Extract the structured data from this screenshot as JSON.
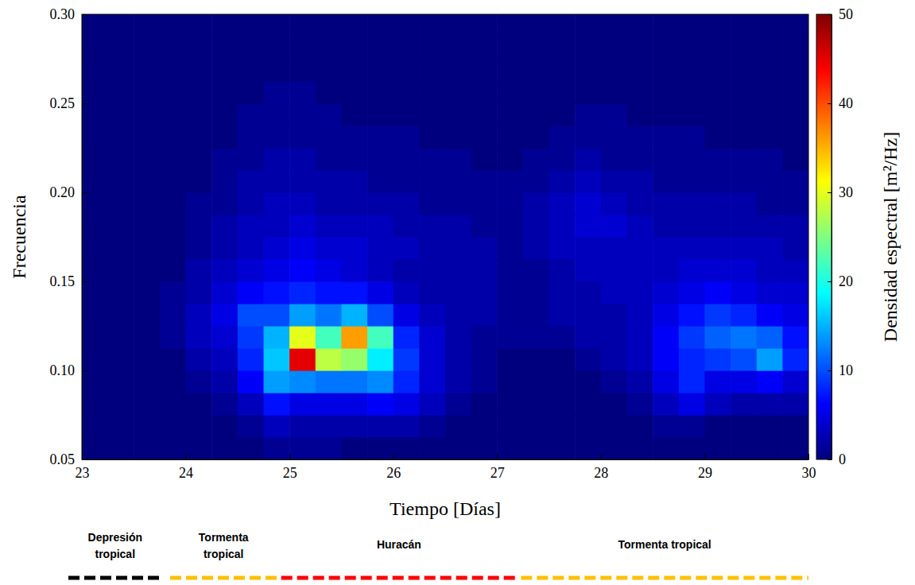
{
  "chart_data": {
    "type": "heatmap",
    "x_label": "Tiempo [Días]",
    "y_label": "Frecuencia",
    "xlim": [
      23,
      30
    ],
    "xticks": [
      23,
      24,
      25,
      26,
      27,
      28,
      29,
      30
    ],
    "ylim": [
      0.05,
      0.3
    ],
    "yticks": [
      0.05,
      {
        "value": 0.1,
        "label": "0.10"
      },
      0.15,
      {
        "value": 0.2,
        "label": "0.20"
      },
      0.25,
      {
        "value": 0.3,
        "label": "0.30"
      }
    ],
    "x_bins": [
      23,
      23.25,
      23.5,
      23.75,
      24,
      24.25,
      24.5,
      24.75,
      25,
      25.25,
      25.5,
      25.75,
      26,
      26.25,
      26.5,
      26.75,
      27,
      27.25,
      27.5,
      27.75,
      28,
      28.25,
      28.5,
      28.75,
      29,
      29.25,
      29.5,
      29.75,
      30
    ],
    "y_bins": [
      0.05,
      0.0625,
      0.075,
      0.0875,
      0.1,
      0.1125,
      0.125,
      0.1375,
      0.15,
      0.1625,
      0.175,
      0.1875,
      0.2,
      0.2125,
      0.225,
      0.2375,
      0.25,
      0.2625,
      0.275,
      0.2875,
      0.3
    ],
    "values": [
      [
        0,
        0,
        0,
        0,
        0,
        0,
        0,
        1,
        1,
        1,
        0,
        0,
        0,
        0,
        0,
        0,
        0,
        0,
        0,
        0,
        0,
        0,
        0,
        0,
        0,
        0,
        0,
        0
      ],
      [
        0,
        0,
        0,
        0,
        0,
        0,
        1,
        3,
        2,
        2,
        2,
        2,
        2,
        1,
        0,
        0,
        0,
        0,
        0,
        0,
        0,
        0,
        1,
        1,
        0,
        0,
        0,
        0
      ],
      [
        0,
        0,
        0,
        0,
        0,
        1,
        3,
        7,
        5,
        5,
        5,
        6,
        5,
        3,
        1,
        0,
        0,
        0,
        0,
        0,
        0,
        1,
        3,
        5,
        3,
        2,
        2,
        2
      ],
      [
        0,
        0,
        0,
        0,
        1,
        2,
        6,
        14,
        13,
        12,
        12,
        13,
        8,
        4,
        2,
        1,
        0,
        0,
        0,
        0,
        1,
        2,
        5,
        8,
        5,
        5,
        6,
        4
      ],
      [
        0,
        0,
        0,
        0,
        2,
        3,
        8,
        16,
        45,
        28,
        26,
        18,
        9,
        4,
        2,
        1,
        0,
        0,
        0,
        1,
        2,
        3,
        6,
        8,
        9,
        10,
        14,
        8
      ],
      [
        0,
        0,
        0,
        1,
        3,
        4,
        9,
        15,
        30,
        22,
        36,
        22,
        8,
        4,
        2,
        1,
        1,
        1,
        1,
        2,
        2,
        3,
        6,
        9,
        11,
        12,
        11,
        7
      ],
      [
        0,
        0,
        0,
        1,
        3,
        5,
        10,
        10,
        14,
        12,
        15,
        10,
        5,
        3,
        2,
        2,
        1,
        1,
        2,
        2,
        2,
        3,
        5,
        7,
        9,
        8,
        6,
        5
      ],
      [
        0,
        0,
        0,
        1,
        2,
        4,
        6,
        7,
        8,
        7,
        7,
        5,
        3,
        2,
        2,
        2,
        1,
        1,
        2,
        2,
        3,
        3,
        4,
        5,
        6,
        5,
        4,
        4
      ],
      [
        0,
        0,
        0,
        0,
        2,
        3,
        4,
        5,
        6,
        5,
        4,
        3,
        2,
        2,
        2,
        2,
        1,
        1,
        2,
        3,
        3,
        3,
        3,
        4,
        4,
        4,
        3,
        3
      ],
      [
        0,
        0,
        0,
        0,
        1,
        2,
        3,
        4,
        5,
        4,
        4,
        3,
        3,
        2,
        2,
        2,
        1,
        2,
        3,
        3,
        3,
        3,
        3,
        3,
        3,
        3,
        3,
        2
      ],
      [
        0,
        0,
        0,
        0,
        1,
        2,
        3,
        3,
        4,
        3,
        3,
        3,
        2,
        2,
        2,
        1,
        1,
        2,
        3,
        4,
        4,
        3,
        2,
        2,
        2,
        2,
        2,
        2
      ],
      [
        0,
        0,
        0,
        0,
        1,
        1,
        2,
        3,
        3,
        2,
        2,
        2,
        2,
        1,
        1,
        1,
        1,
        2,
        3,
        4,
        3,
        2,
        2,
        2,
        2,
        2,
        1,
        1
      ],
      [
        0,
        0,
        0,
        0,
        0,
        1,
        2,
        2,
        2,
        2,
        2,
        1,
        1,
        1,
        1,
        1,
        1,
        1,
        2,
        3,
        2,
        2,
        1,
        1,
        1,
        1,
        1,
        1
      ],
      [
        0,
        0,
        0,
        0,
        0,
        1,
        1,
        2,
        2,
        1,
        1,
        1,
        1,
        1,
        1,
        0,
        0,
        1,
        1,
        2,
        1,
        1,
        1,
        1,
        1,
        1,
        1,
        0
      ],
      [
        0,
        0,
        0,
        0,
        0,
        0,
        1,
        1,
        1,
        1,
        1,
        1,
        1,
        0,
        0,
        0,
        0,
        0,
        1,
        1,
        1,
        1,
        1,
        1,
        0,
        0,
        0,
        0
      ],
      [
        0,
        0,
        0,
        0,
        0,
        0,
        1,
        1,
        1,
        1,
        0,
        0,
        0,
        0,
        0,
        0,
        0,
        0,
        0,
        1,
        1,
        0,
        0,
        0,
        0,
        0,
        0,
        0
      ],
      [
        0,
        0,
        0,
        0,
        0,
        0,
        0,
        1,
        1,
        0,
        0,
        0,
        0,
        0,
        0,
        0,
        0,
        0,
        0,
        0,
        0,
        0,
        0,
        0,
        0,
        0,
        0,
        0
      ],
      [
        0,
        0,
        0,
        0,
        0,
        0,
        0,
        0,
        0,
        0,
        0,
        0,
        0,
        0,
        0,
        0,
        0,
        0,
        0,
        0,
        0,
        0,
        0,
        0,
        0,
        0,
        0,
        0
      ],
      [
        0,
        0,
        0,
        0,
        0,
        0,
        0,
        0,
        0,
        0,
        0,
        0,
        0,
        0,
        0,
        0,
        0,
        0,
        0,
        0,
        0,
        0,
        0,
        0,
        0,
        0,
        0,
        0
      ],
      [
        0,
        0,
        0,
        0,
        0,
        0,
        0,
        0,
        0,
        0,
        0,
        0,
        0,
        0,
        0,
        0,
        0,
        0,
        0,
        0,
        0,
        0,
        0,
        0,
        0,
        0,
        0,
        0
      ]
    ],
    "colorbar": {
      "label": "Densidad espectral [m²/Hz]",
      "lim": [
        0,
        50
      ],
      "ticks": [
        0,
        10,
        20,
        30,
        40,
        50
      ]
    },
    "annotations": [
      {
        "text": "Depresión tropical",
        "x": [
          22.87,
          23.77
        ],
        "color": "#000000"
      },
      {
        "text": "Tormenta tropical",
        "x": [
          23.85,
          24.88
        ],
        "color": "#ffc000"
      },
      {
        "text": "Huracán",
        "x": [
          24.92,
          27.19
        ],
        "color": "#ff0000"
      },
      {
        "text": "Tormenta tropical",
        "x": [
          27.23,
          30
        ],
        "color": "#ffc000"
      }
    ]
  }
}
